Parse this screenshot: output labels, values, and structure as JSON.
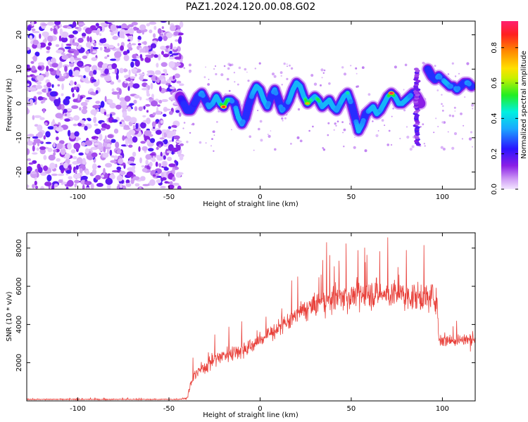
{
  "title": "PAZ1.2024.120.00.08.G02",
  "chart_data": [
    {
      "type": "heatmap",
      "xlabel": "Height of straight line (km)",
      "ylabel": "Frequency (Hz)",
      "xlim": [
        -128,
        118
      ],
      "ylim": [
        -25,
        24
      ],
      "xticks": [
        -100,
        -50,
        0,
        50,
        100
      ],
      "yticks": [
        -20,
        -10,
        0,
        10,
        20
      ],
      "noise_region_x": [
        -128,
        -43
      ],
      "colorbar": {
        "label": "Normalized spectral amplitude",
        "range": [
          0,
          0.95
        ],
        "ticks": [
          0.0,
          0.2,
          0.4,
          0.6,
          0.8
        ]
      },
      "ridge": {
        "x": [
          -44,
          -42,
          -40,
          -38,
          -36,
          -34,
          -32,
          -30,
          -28,
          -26,
          -24,
          -22,
          -20,
          -18,
          -16,
          -14,
          -12,
          -10,
          -8,
          -6,
          -4,
          -2,
          0,
          2,
          4,
          6,
          8,
          10,
          12,
          14,
          16,
          18,
          20,
          22,
          24,
          26,
          28,
          30,
          32,
          34,
          36,
          38,
          40,
          42,
          44,
          46,
          48,
          50,
          52,
          54,
          56,
          58,
          60,
          62,
          64,
          66,
          68,
          70,
          72,
          74,
          76,
          78,
          80,
          82,
          84,
          86,
          88
        ],
        "freq": [
          2,
          0,
          -2,
          -2,
          0,
          2,
          3,
          1,
          -1,
          0,
          2,
          0,
          -1,
          1,
          1,
          0,
          -4,
          -6,
          -4,
          0,
          3,
          5,
          4,
          1,
          -1,
          2,
          4,
          1,
          -2,
          -1,
          1,
          4,
          6,
          5,
          2,
          0,
          1,
          2,
          1,
          -1,
          0,
          1,
          -1,
          -2,
          0,
          2,
          3,
          0,
          -4,
          -8,
          -6,
          -3,
          -2,
          -1,
          -3,
          -2,
          0,
          2,
          3,
          2,
          0,
          0,
          1,
          2,
          3,
          2,
          0
        ],
        "amp": [
          0.2,
          0.25,
          0.3,
          0.3,
          0.25,
          0.3,
          0.35,
          0.3,
          0.35,
          0.35,
          0.4,
          0.45,
          0.85,
          0.6,
          0.35,
          0.3,
          0.45,
          0.35,
          0.3,
          0.3,
          0.35,
          0.4,
          0.4,
          0.45,
          0.35,
          0.3,
          0.35,
          0.3,
          0.35,
          0.3,
          0.35,
          0.4,
          0.45,
          0.45,
          0.4,
          0.7,
          0.5,
          0.45,
          0.55,
          0.35,
          0.4,
          0.4,
          0.4,
          0.35,
          0.35,
          0.45,
          0.5,
          0.3,
          0.3,
          0.4,
          0.35,
          0.3,
          0.35,
          0.4,
          0.45,
          0.35,
          0.4,
          0.45,
          0.9,
          0.4,
          0.4,
          0.45,
          0.4,
          0.35,
          0.3,
          0.2,
          0.15
        ]
      },
      "ridge2": {
        "x": [
          92,
          94,
          96,
          98,
          100,
          102,
          104,
          106,
          108,
          110,
          112,
          114,
          116
        ],
        "freq": [
          10,
          8,
          7,
          8,
          7,
          6,
          5,
          5,
          4,
          5,
          6,
          6,
          5
        ],
        "amp": [
          0.25,
          0.3,
          0.3,
          0.35,
          0.3,
          0.4,
          0.35,
          0.3,
          0.35,
          0.3,
          0.3,
          0.35,
          0.3
        ]
      },
      "streak": {
        "x": 86,
        "freq": [
          -12,
          10
        ],
        "amp": 0.15
      }
    },
    {
      "type": "line",
      "xlabel": "Height of straight line (km)",
      "ylabel": "SNR (10 * v/v)",
      "xlim": [
        -128,
        118
      ],
      "ylim": [
        0,
        8800
      ],
      "xticks": [
        -100,
        -50,
        0,
        50,
        100
      ],
      "yticks": [
        2000,
        4000,
        6000,
        8000
      ],
      "color": "#e8403a",
      "series": [
        {
          "x": [
            -128,
            -45,
            -40,
            -38,
            -35,
            -30,
            -25,
            -20,
            -15,
            -10,
            -5,
            0,
            5,
            10,
            15,
            20,
            25,
            30,
            35,
            40,
            45,
            50,
            55,
            60,
            65,
            70,
            75,
            80,
            85,
            90,
            95,
            97,
            98,
            100,
            105,
            110,
            116,
            118
          ],
          "values": [
            80,
            80,
            150,
            900,
            1500,
            1800,
            2200,
            2400,
            2550,
            2700,
            2850,
            3200,
            3500,
            3800,
            4100,
            4500,
            4800,
            5000,
            5200,
            5350,
            5450,
            5500,
            5550,
            5600,
            5600,
            5600,
            5550,
            5500,
            5450,
            5450,
            5400,
            5400,
            3300,
            3200,
            3200,
            3200,
            3200,
            3300
          ],
          "noise": [
            40,
            40,
            80,
            400,
            500,
            600,
            600,
            650,
            650,
            700,
            700,
            700,
            700,
            750,
            800,
            850,
            900,
            1000,
            1050,
            1100,
            1100,
            1150,
            1150,
            1150,
            1150,
            1150,
            1150,
            1100,
            1100,
            1100,
            1100,
            1100,
            600,
            600,
            600,
            600,
            600,
            600
          ]
        }
      ]
    }
  ]
}
